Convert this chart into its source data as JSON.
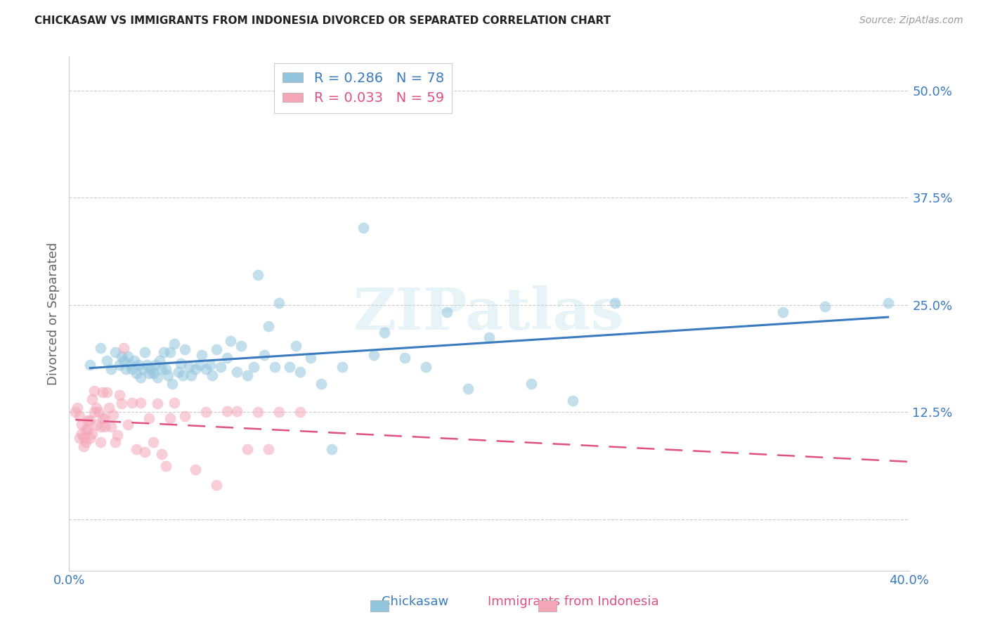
{
  "title": "CHICKASAW VS IMMIGRANTS FROM INDONESIA DIVORCED OR SEPARATED CORRELATION CHART",
  "source": "Source: ZipAtlas.com",
  "ylabel": "Divorced or Separated",
  "y_ticks": [
    0.0,
    0.125,
    0.25,
    0.375,
    0.5
  ],
  "y_tick_labels": [
    "",
    "12.5%",
    "25.0%",
    "37.5%",
    "50.0%"
  ],
  "x_lim": [
    0.0,
    0.4
  ],
  "y_lim": [
    -0.06,
    0.54
  ],
  "chickasaw_R": 0.286,
  "chickasaw_N": 78,
  "indonesia_R": 0.033,
  "indonesia_N": 59,
  "legend_label_1": "Chickasaw",
  "legend_label_2": "Immigrants from Indonesia",
  "blue_color": "#92c5de",
  "blue_line": "#3a7abf",
  "pink_color": "#f4a6b8",
  "pink_line": "#e05080",
  "watermark": "ZIPatlas",
  "chickasaw_x": [
    0.01,
    0.015,
    0.018,
    0.02,
    0.022,
    0.024,
    0.025,
    0.026,
    0.027,
    0.028,
    0.029,
    0.03,
    0.031,
    0.032,
    0.033,
    0.034,
    0.035,
    0.036,
    0.037,
    0.038,
    0.039,
    0.04,
    0.041,
    0.042,
    0.043,
    0.044,
    0.045,
    0.046,
    0.047,
    0.048,
    0.049,
    0.05,
    0.052,
    0.053,
    0.054,
    0.055,
    0.057,
    0.058,
    0.06,
    0.062,
    0.063,
    0.065,
    0.067,
    0.068,
    0.07,
    0.072,
    0.075,
    0.077,
    0.08,
    0.082,
    0.085,
    0.088,
    0.09,
    0.093,
    0.095,
    0.098,
    0.1,
    0.105,
    0.108,
    0.11,
    0.115,
    0.12,
    0.125,
    0.13,
    0.14,
    0.145,
    0.15,
    0.16,
    0.17,
    0.18,
    0.19,
    0.2,
    0.22,
    0.24,
    0.26,
    0.34,
    0.36,
    0.39
  ],
  "chickasaw_y": [
    0.18,
    0.2,
    0.185,
    0.175,
    0.195,
    0.18,
    0.19,
    0.185,
    0.175,
    0.19,
    0.18,
    0.175,
    0.185,
    0.17,
    0.18,
    0.165,
    0.175,
    0.195,
    0.18,
    0.17,
    0.175,
    0.17,
    0.18,
    0.165,
    0.185,
    0.175,
    0.195,
    0.175,
    0.168,
    0.195,
    0.158,
    0.205,
    0.172,
    0.182,
    0.168,
    0.198,
    0.178,
    0.168,
    0.175,
    0.18,
    0.192,
    0.175,
    0.18,
    0.168,
    0.198,
    0.178,
    0.188,
    0.208,
    0.172,
    0.202,
    0.168,
    0.178,
    0.285,
    0.192,
    0.225,
    0.178,
    0.252,
    0.178,
    0.202,
    0.172,
    0.188,
    0.158,
    0.082,
    0.178,
    0.34,
    0.192,
    0.218,
    0.188,
    0.178,
    0.242,
    0.152,
    0.212,
    0.158,
    0.138,
    0.252,
    0.242,
    0.248,
    0.252
  ],
  "indonesia_x": [
    0.003,
    0.004,
    0.005,
    0.005,
    0.006,
    0.006,
    0.007,
    0.007,
    0.008,
    0.008,
    0.009,
    0.009,
    0.01,
    0.01,
    0.011,
    0.011,
    0.012,
    0.012,
    0.013,
    0.013,
    0.014,
    0.015,
    0.015,
    0.016,
    0.016,
    0.017,
    0.017,
    0.018,
    0.019,
    0.02,
    0.021,
    0.022,
    0.023,
    0.024,
    0.025,
    0.026,
    0.028,
    0.03,
    0.032,
    0.034,
    0.036,
    0.038,
    0.04,
    0.042,
    0.044,
    0.046,
    0.048,
    0.05,
    0.055,
    0.06,
    0.065,
    0.07,
    0.075,
    0.08,
    0.085,
    0.09,
    0.095,
    0.1,
    0.11
  ],
  "indonesia_y": [
    0.125,
    0.13,
    0.12,
    0.095,
    0.1,
    0.11,
    0.085,
    0.095,
    0.09,
    0.105,
    0.105,
    0.115,
    0.095,
    0.115,
    0.14,
    0.1,
    0.15,
    0.125,
    0.13,
    0.11,
    0.125,
    0.108,
    0.09,
    0.148,
    0.118,
    0.118,
    0.108,
    0.148,
    0.13,
    0.108,
    0.122,
    0.09,
    0.098,
    0.145,
    0.135,
    0.2,
    0.11,
    0.136,
    0.082,
    0.136,
    0.078,
    0.118,
    0.09,
    0.135,
    0.076,
    0.062,
    0.118,
    0.136,
    0.12,
    0.058,
    0.125,
    0.04,
    0.126,
    0.126,
    0.082,
    0.125,
    0.082,
    0.125,
    0.125
  ]
}
